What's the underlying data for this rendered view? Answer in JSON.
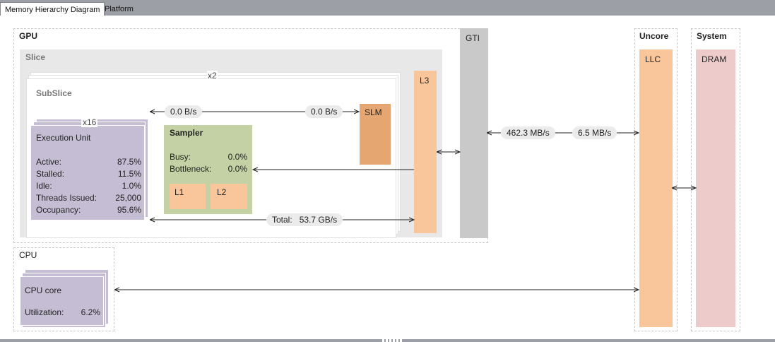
{
  "tabs": [
    {
      "label": "Memory Hierarchy Diagram",
      "active": true
    },
    {
      "label": "Platform",
      "active": false
    }
  ],
  "gpu": {
    "title": "GPU",
    "slice_title": "Slice",
    "slice_multiplier": "x2",
    "subslice_title": "SubSlice",
    "eu_multiplier": "x16",
    "execution_unit": {
      "title": "Execution Unit",
      "stats": [
        {
          "label": "Active:",
          "value": "87.5%"
        },
        {
          "label": "Stalled:",
          "value": "11.5%"
        },
        {
          "label": "Idle:",
          "value": "1.0%"
        },
        {
          "label": "Threads Issued:",
          "value": "25,000"
        },
        {
          "label": "Occupancy:",
          "value": "95.6%"
        }
      ]
    },
    "sampler": {
      "title": "Sampler",
      "stats": [
        {
          "label": "Busy:",
          "value": "0.0%"
        },
        {
          "label": "Bottleneck:",
          "value": "0.0%"
        }
      ],
      "l1": "L1",
      "l2": "L2"
    },
    "slm": "SLM",
    "l3": "L3",
    "gti": "GTI",
    "bw_eu_left": "0.0 B/s",
    "bw_slm_right": "0.0 B/s",
    "total_label": "Total:",
    "total_value": "53.7 GB/s",
    "bw_gti_left": "462.3 MB/s",
    "bw_gti_right": "6.5 MB/s"
  },
  "uncore": {
    "title": "Uncore",
    "llc": "LLC"
  },
  "system": {
    "title": "System",
    "dram": "DRAM"
  },
  "cpu": {
    "title": "CPU",
    "core_title": "CPU core",
    "utilization_label": "Utilization:",
    "utilization_value": "6.2%"
  },
  "colors": {
    "eu": "#c5bdd4",
    "sampler": "#c3d1a5",
    "cache": "#f9c59a",
    "slm": "#e5a672",
    "gti": "#c9c9c9",
    "dram": "#edcbcb"
  }
}
